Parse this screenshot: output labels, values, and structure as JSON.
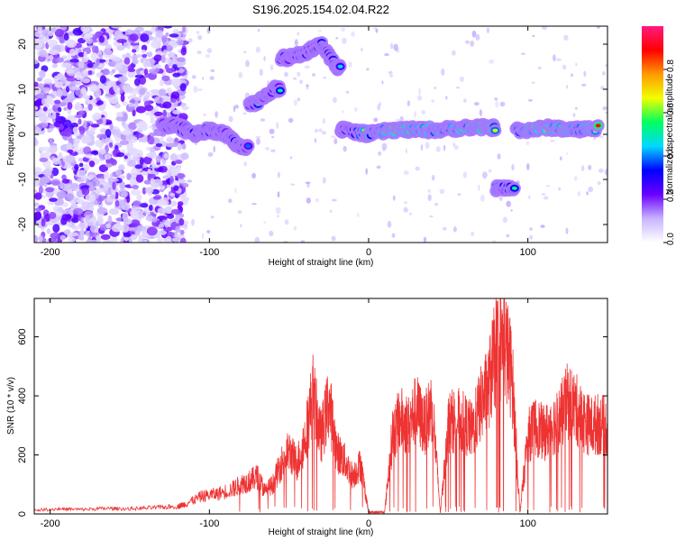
{
  "title": "S196.2025.154.02.04.R22",
  "chart_data": [
    {
      "type": "heatmap",
      "name": "spectrogram",
      "xlabel": "Height of straight line (km)",
      "ylabel": "Frequency (Hz)",
      "xlim": [
        -210,
        150
      ],
      "ylim": [
        -24,
        24
      ],
      "xticks": [
        -200,
        -100,
        0,
        100
      ],
      "yticks": [
        -20,
        -10,
        0,
        10,
        20
      ],
      "colorbar": {
        "label": "Normalized spectral amplitude",
        "range": [
          0,
          1
        ],
        "ticks": [
          "0.0",
          "0.2",
          "0.4",
          "0.6",
          "0.8"
        ],
        "tick_values": [
          0,
          0.2,
          0.4,
          0.6,
          0.8
        ],
        "colors": [
          "#ffffff",
          "#c8b4ff",
          "#6a00ff",
          "#0000ff",
          "#00d8ff",
          "#00ff60",
          "#f0ff00",
          "#ff9a00",
          "#ff0000",
          "#ff1a80"
        ]
      },
      "ridge": [
        {
          "x": -130,
          "y": 2,
          "amp": 0.4
        },
        {
          "x": -120,
          "y": 2,
          "amp": 0.5
        },
        {
          "x": -110,
          "y": 0,
          "amp": 0.45
        },
        {
          "x": -100,
          "y": 1,
          "amp": 0.5
        },
        {
          "x": -90,
          "y": 0,
          "amp": 0.45
        },
        {
          "x": -80,
          "y": -3,
          "amp": 0.45
        },
        {
          "x": -70,
          "y": 7,
          "amp": 0.5
        },
        {
          "x": -60,
          "y": 10,
          "amp": 0.45
        },
        {
          "x": -50,
          "y": 17,
          "amp": 0.45
        },
        {
          "x": -40,
          "y": 18,
          "amp": 0.45
        },
        {
          "x": -30,
          "y": 20,
          "amp": 0.45
        },
        {
          "x": -20,
          "y": 15,
          "amp": 0.45
        },
        {
          "x": -15,
          "y": 1,
          "amp": 0.5
        },
        {
          "x": 0,
          "y": 0,
          "amp": 0.65
        },
        {
          "x": 15,
          "y": 1,
          "amp": 0.9
        },
        {
          "x": 30,
          "y": 1,
          "amp": 0.75
        },
        {
          "x": 45,
          "y": 1,
          "amp": 0.7
        },
        {
          "x": 60,
          "y": 1.5,
          "amp": 0.7
        },
        {
          "x": 75,
          "y": 1.5,
          "amp": 0.85
        },
        {
          "x": 85,
          "y": -12,
          "amp": 0.5
        },
        {
          "x": 100,
          "y": 1,
          "amp": 0.8
        },
        {
          "x": 115,
          "y": 1.5,
          "amp": 0.8
        },
        {
          "x": 130,
          "y": 1,
          "amp": 0.75
        },
        {
          "x": 145,
          "y": 1.5,
          "amp": 0.85
        }
      ]
    },
    {
      "type": "line",
      "name": "snr",
      "xlabel": "Height of straight line (km)",
      "ylabel": "SNR (10 * v/v)",
      "xlim": [
        -210,
        150
      ],
      "ylim": [
        0,
        730
      ],
      "xticks": [
        -200,
        -100,
        0,
        100
      ],
      "yticks": [
        0,
        200,
        400,
        600
      ],
      "color": "#ee3333",
      "series": [
        {
          "x": [
            -210,
            -195,
            -180,
            -165,
            -150,
            -135,
            -120,
            -115,
            -105,
            -95,
            -85,
            -80,
            -75,
            -70,
            -65,
            -60,
            -55,
            -50,
            -45,
            -40,
            -35,
            -30,
            -25,
            -20,
            -15,
            -10,
            -5,
            0,
            5,
            10,
            15,
            20,
            25,
            30,
            35,
            40,
            45,
            50,
            55,
            60,
            65,
            70,
            75,
            80,
            85,
            90,
            95,
            100,
            105,
            110,
            115,
            120,
            125,
            130,
            135,
            140,
            145,
            150
          ],
          "y": [
            15,
            20,
            18,
            22,
            20,
            25,
            30,
            40,
            70,
            80,
            100,
            120,
            130,
            150,
            90,
            120,
            200,
            250,
            200,
            300,
            480,
            300,
            450,
            250,
            210,
            150,
            200,
            5,
            5,
            5,
            320,
            380,
            350,
            420,
            350,
            440,
            5,
            360,
            380,
            360,
            330,
            430,
            500,
            650,
            690,
            560,
            5,
            310,
            350,
            320,
            350,
            380,
            450,
            420,
            370,
            350,
            360,
            340
          ]
        }
      ]
    }
  ]
}
